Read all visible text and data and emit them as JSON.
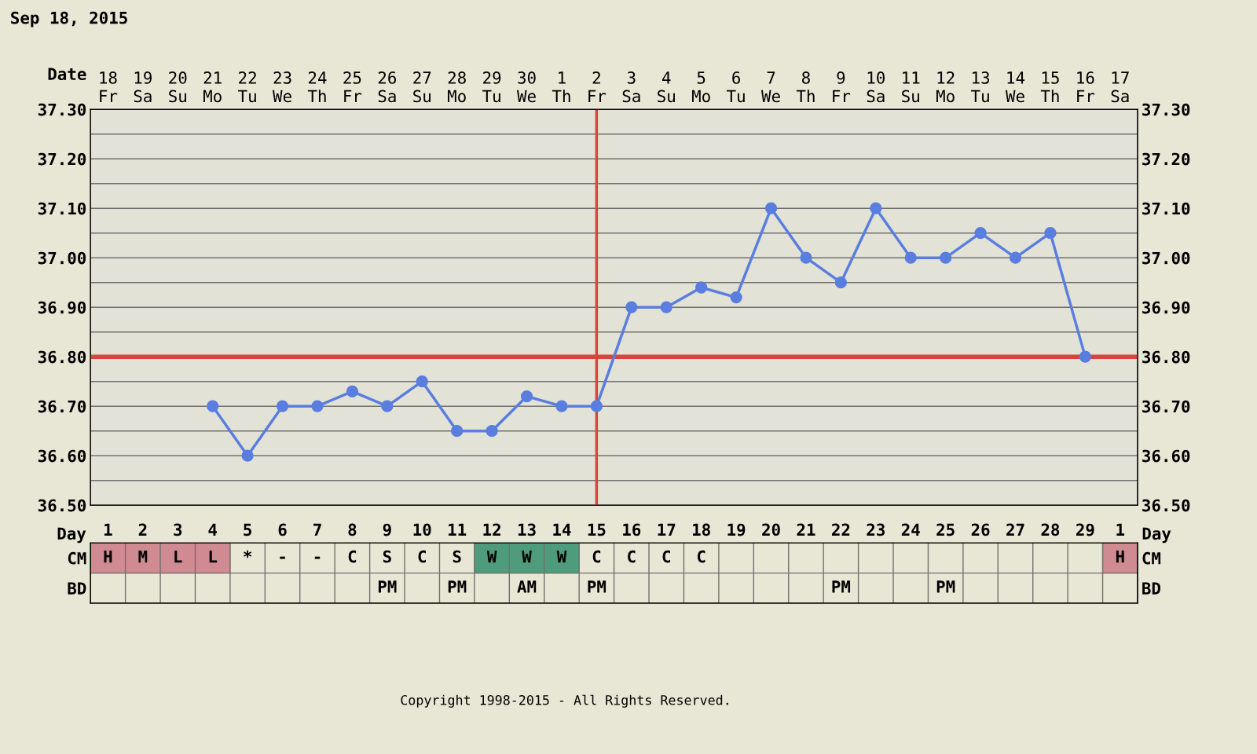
{
  "chart_data": [
    {
      "type": "line",
      "title": "Sep 18, 2015",
      "xlabel": "Date",
      "categories": [
        "18\nFr",
        "19\nSa",
        "20\nSu",
        "21\nMo",
        "22\nTu",
        "23\nWe",
        "24\nTh",
        "25\nFr",
        "26\nSa",
        "27\nSu",
        "28\nMo",
        "29\nTu",
        "30\nWe",
        "1\nTh",
        "2\nFr",
        "3\nSa",
        "4\nSu",
        "5\nMo",
        "6\nTu",
        "7\nWe",
        "8\nTh",
        "9\nFr",
        "10\nSa",
        "11\nSu",
        "12\nMo",
        "13\nTu",
        "14\nWe",
        "15\nTh",
        "16\nFr",
        "17\nSa"
      ],
      "series": [
        {
          "color": "#5a7ee0",
          "values": [
            null,
            null,
            null,
            36.7,
            36.6,
            36.7,
            36.7,
            36.73,
            36.7,
            36.75,
            36.65,
            36.65,
            36.72,
            36.7,
            36.7,
            36.9,
            36.9,
            36.94,
            36.92,
            37.1,
            37.0,
            36.95,
            37.1,
            37.0,
            37.0,
            37.05,
            37.0,
            37.05,
            36.8,
            null
          ]
        }
      ],
      "ylim": [
        36.5,
        37.3
      ],
      "yticks": [
        {
          "value": 36.5,
          "label": "36.50"
        },
        {
          "value": 36.55,
          "label": null
        },
        {
          "value": 36.6,
          "label": "36.60"
        },
        {
          "value": 36.65,
          "label": null
        },
        {
          "value": 36.7,
          "label": "36.70"
        },
        {
          "value": 36.75,
          "label": null
        },
        {
          "value": 36.8,
          "label": "36.80"
        },
        {
          "value": 36.85,
          "label": null
        },
        {
          "value": 36.9,
          "label": "36.90"
        },
        {
          "value": 36.95,
          "label": null
        },
        {
          "value": 37.0,
          "label": "37.00"
        },
        {
          "value": 37.05,
          "label": null
        },
        {
          "value": 37.1,
          "label": "37.10"
        },
        {
          "value": 37.15,
          "label": null
        },
        {
          "value": 37.2,
          "label": "37.20"
        },
        {
          "value": 37.25,
          "label": null
        },
        {
          "value": 37.3,
          "label": "37.30"
        }
      ],
      "y2lim": [
        36.5,
        37.3
      ],
      "y2ticks": [
        {
          "value": 36.5,
          "label": "36.50"
        },
        {
          "value": 36.6,
          "label": "36.60"
        },
        {
          "value": 36.7,
          "label": "36.70"
        },
        {
          "value": 36.8,
          "label": "36.80"
        },
        {
          "value": 36.9,
          "label": "36.90"
        },
        {
          "value": 37.0,
          "label": "37.00"
        },
        {
          "value": 37.1,
          "label": "37.10"
        },
        {
          "value": 37.2,
          "label": "37.20"
        },
        {
          "value": 37.3,
          "label": "37.30"
        }
      ],
      "ref_lines": [
        {
          "axis": "y",
          "value": 36.8,
          "color": "#d9443c"
        },
        {
          "axis": "x",
          "value": "2\nFr",
          "color": "#d9443c"
        }
      ],
      "grid": true,
      "marker": "circle",
      "line_style": "solid",
      "legend": false
    },
    {
      "type": "heatmap",
      "xlabel": "Day",
      "categories": [
        "1",
        "2",
        "3",
        "4",
        "5",
        "6",
        "7",
        "8",
        "9",
        "10",
        "11",
        "12",
        "13",
        "14",
        "15",
        "16",
        "17",
        "18",
        "19",
        "20",
        "21",
        "22",
        "23",
        "24",
        "25",
        "26",
        "27",
        "28",
        "29",
        "1"
      ],
      "y_categories": [
        "CM",
        "BD"
      ],
      "y2_categories": [
        "CM",
        "BD"
      ],
      "cells": [
        [
          null,
          null,
          null,
          null,
          null,
          null,
          null,
          null,
          null,
          null,
          null,
          null,
          null,
          null,
          null,
          null,
          null,
          null,
          null,
          null,
          null,
          null,
          null,
          null,
          null,
          null,
          null,
          null,
          null,
          null
        ],
        [
          null,
          null,
          null,
          null,
          null,
          null,
          null,
          null,
          null,
          null,
          null,
          null,
          null,
          null,
          null,
          null,
          null,
          null,
          null,
          null,
          null,
          null,
          null,
          null,
          null,
          null,
          null,
          null,
          null,
          null
        ]
      ],
      "cell_labels": [
        [
          "H",
          "M",
          "L",
          "L",
          "*",
          "-",
          "-",
          "C",
          "S",
          "C",
          "S",
          "W",
          "W",
          "W",
          "C",
          "C",
          "C",
          "C",
          null,
          null,
          null,
          null,
          null,
          null,
          null,
          null,
          null,
          null,
          null,
          "H"
        ],
        [
          null,
          null,
          null,
          null,
          null,
          null,
          null,
          null,
          "PM",
          null,
          "PM",
          null,
          "AM",
          null,
          "PM",
          null,
          null,
          null,
          null,
          null,
          null,
          "PM",
          null,
          null,
          "PM",
          null,
          null,
          null,
          null,
          null
        ]
      ],
      "colors": [
        [
          "#cf8a92",
          "#cf8a92",
          "#cf8a92",
          "#cf8a92",
          null,
          null,
          null,
          null,
          null,
          null,
          null,
          "#4f9c7c",
          "#4f9c7c",
          "#4f9c7c",
          null,
          null,
          null,
          null,
          null,
          null,
          null,
          null,
          null,
          null,
          null,
          null,
          null,
          null,
          null,
          "#cf8a92"
        ],
        [
          null,
          null,
          null,
          null,
          null,
          null,
          null,
          null,
          null,
          null,
          null,
          null,
          null,
          null,
          null,
          null,
          null,
          null,
          null,
          null,
          null,
          null,
          null,
          null,
          null,
          null,
          null,
          null,
          null,
          null
        ]
      ],
      "annotations": [
        "Copyright 1998-2015 - All Rights Reserved."
      ]
    }
  ]
}
